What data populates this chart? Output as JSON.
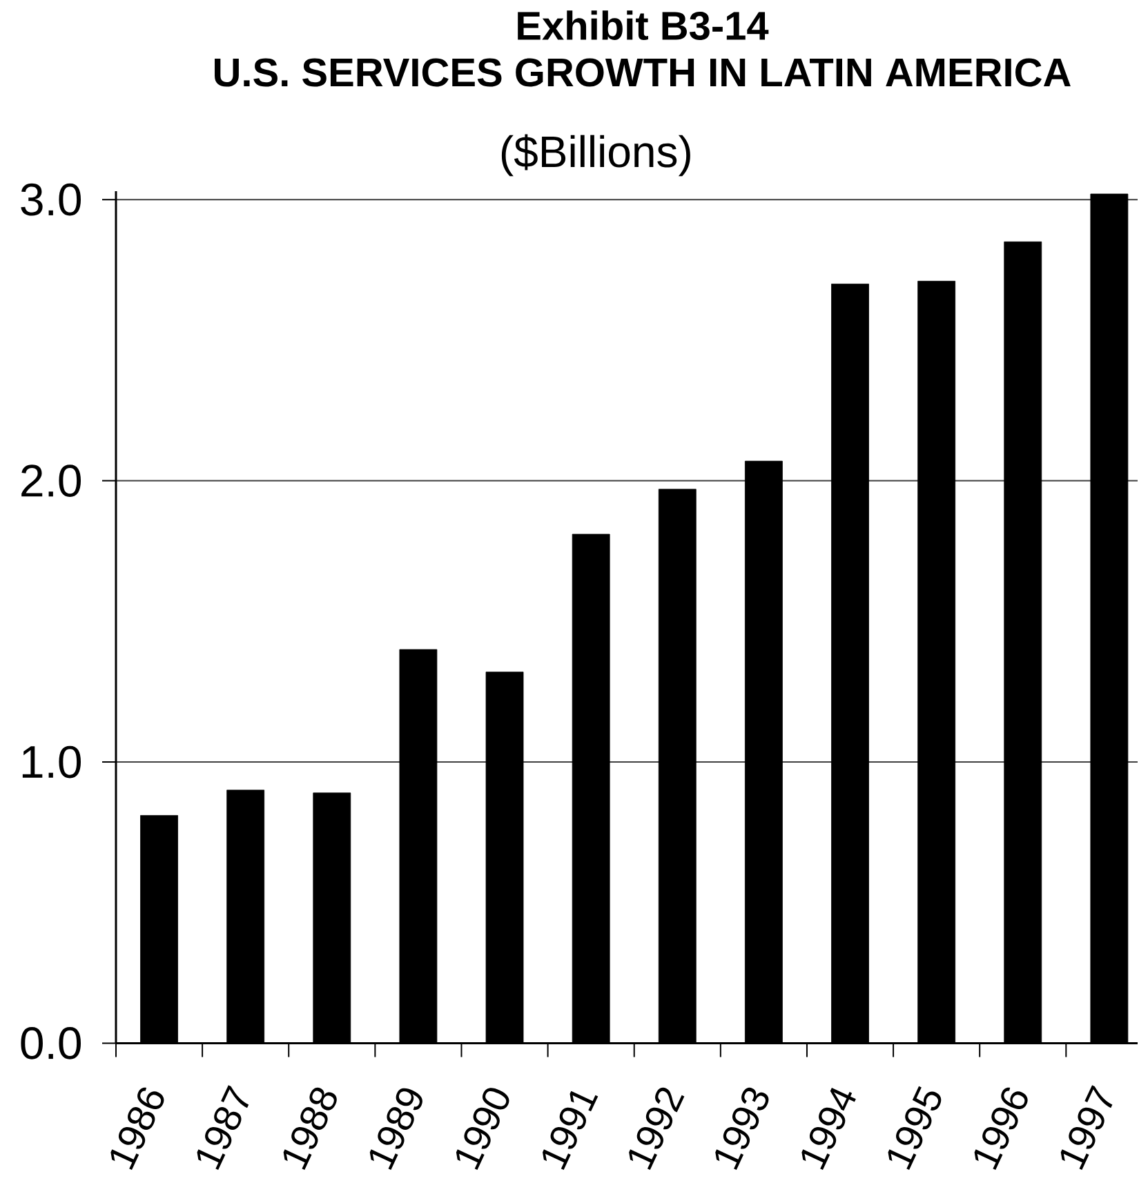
{
  "chart_data": {
    "type": "bar",
    "title": "Exhibit B3-14",
    "subtitle": "U.S. SERVICES GROWTH IN LATIN AMERICA",
    "ylabel": "($Billions)",
    "categories": [
      "1986",
      "1987",
      "1988",
      "1989",
      "1990",
      "1991",
      "1992",
      "1993",
      "1994",
      "1995",
      "1996",
      "1997"
    ],
    "values": [
      0.81,
      0.9,
      0.89,
      1.4,
      1.32,
      1.81,
      1.97,
      2.07,
      2.7,
      2.71,
      2.85,
      3.02
    ],
    "color": "#000000",
    "ylim": [
      0,
      3.03
    ],
    "yticks": [
      {
        "value": 0,
        "label": "0.0"
      },
      {
        "value": 1,
        "label": "1.0"
      },
      {
        "value": 2,
        "label": "2.0"
      },
      {
        "value": 3,
        "label": "3.0"
      }
    ],
    "grid": "y"
  }
}
